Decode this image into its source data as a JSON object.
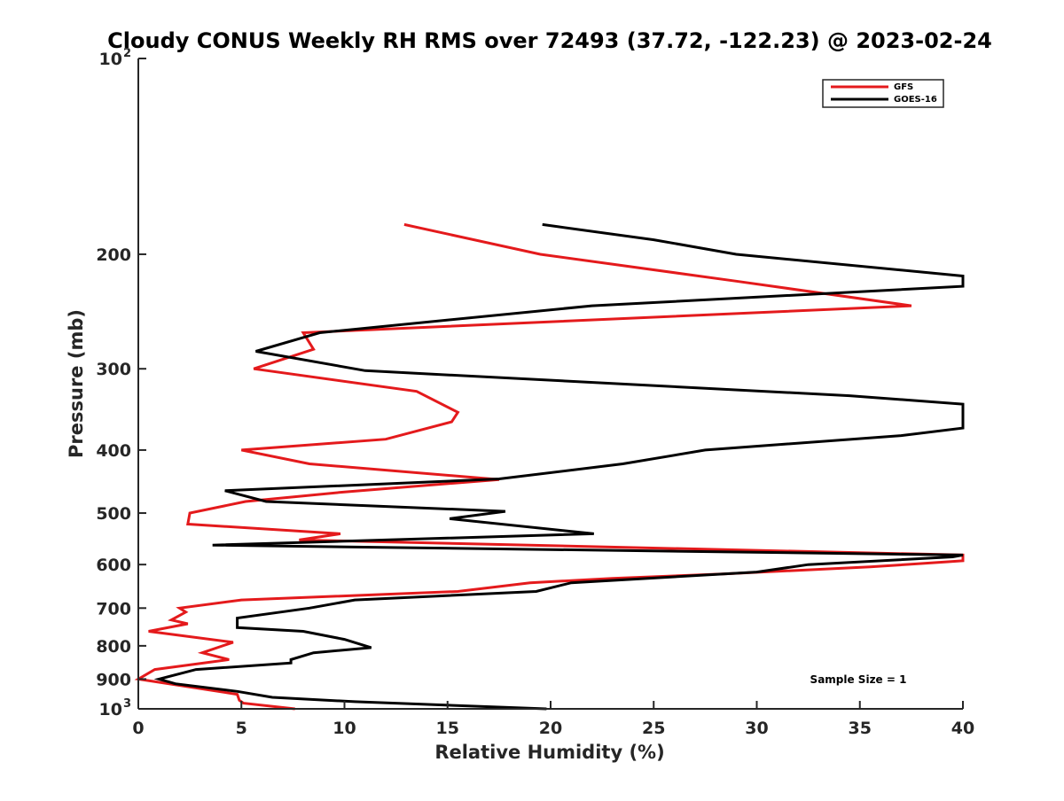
{
  "chart_data": {
    "type": "line",
    "title": "Cloudy CONUS Weekly RH RMS over 72493 (37.72, -122.23) @ 2023-02-24",
    "xlabel": "Relative Humidity (%)",
    "ylabel": "Pressure (mb)",
    "xlim": [
      0,
      40
    ],
    "ylim": [
      100,
      1000
    ],
    "y_scale": "log",
    "y_direction": "reversed",
    "x_ticks": [
      0,
      5,
      10,
      15,
      20,
      25,
      30,
      35,
      40
    ],
    "y_ticks": [
      {
        "value": 100,
        "label": "10",
        "sup": "2"
      },
      {
        "value": 200,
        "label": "200",
        "sup": ""
      },
      {
        "value": 300,
        "label": "300",
        "sup": ""
      },
      {
        "value": 400,
        "label": "400",
        "sup": ""
      },
      {
        "value": 500,
        "label": "500",
        "sup": ""
      },
      {
        "value": 600,
        "label": "600",
        "sup": ""
      },
      {
        "value": 700,
        "label": "700",
        "sup": ""
      },
      {
        "value": 800,
        "label": "800",
        "sup": ""
      },
      {
        "value": 900,
        "label": "900",
        "sup": ""
      },
      {
        "value": 1000,
        "label": "10",
        "sup": "3"
      }
    ],
    "grid": false,
    "legend_position": "top-right",
    "annotation": "Sample Size = 1",
    "series": [
      {
        "name": "GFS",
        "color": "#e41a1c",
        "points": [
          [
            12.9,
            180
          ],
          [
            19.5,
            200
          ],
          [
            29.0,
            220
          ],
          [
            37.5,
            240
          ],
          [
            8.0,
            264
          ],
          [
            8.5,
            280
          ],
          [
            5.6,
            300
          ],
          [
            13.5,
            325
          ],
          [
            15.5,
            350
          ],
          [
            15.2,
            362
          ],
          [
            12.0,
            385
          ],
          [
            5.0,
            400
          ],
          [
            8.3,
            420
          ],
          [
            17.5,
            444
          ],
          [
            10.0,
            464
          ],
          [
            5.2,
            480
          ],
          [
            2.5,
            500
          ],
          [
            2.4,
            520
          ],
          [
            9.8,
            538
          ],
          [
            7.8,
            550
          ],
          [
            40.0,
            580
          ],
          [
            40.0,
            592
          ],
          [
            35.5,
            605
          ],
          [
            28.5,
            620
          ],
          [
            23.0,
            630
          ],
          [
            19.0,
            640
          ],
          [
            15.5,
            660
          ],
          [
            5.0,
            680
          ],
          [
            2.0,
            700
          ],
          [
            2.3,
            710
          ],
          [
            1.6,
            730
          ],
          [
            2.4,
            740
          ],
          [
            0.5,
            760
          ],
          [
            4.6,
            790
          ],
          [
            3.1,
            820
          ],
          [
            4.4,
            840
          ],
          [
            0.8,
            870
          ],
          [
            0.0,
            900
          ],
          [
            4.8,
            950
          ],
          [
            4.9,
            970
          ],
          [
            5.1,
            980
          ],
          [
            7.6,
            1000
          ]
        ]
      },
      {
        "name": "GOES-16",
        "color": "#000000",
        "points": [
          [
            19.6,
            180
          ],
          [
            25.0,
            190
          ],
          [
            29.0,
            200
          ],
          [
            40.0,
            216
          ],
          [
            40.0,
            224
          ],
          [
            22.0,
            240
          ],
          [
            8.8,
            264
          ],
          [
            5.7,
            282
          ],
          [
            11.0,
            302
          ],
          [
            34.5,
            330
          ],
          [
            40.0,
            340
          ],
          [
            40.0,
            370
          ],
          [
            37.0,
            380
          ],
          [
            27.5,
            400
          ],
          [
            23.5,
            420
          ],
          [
            17.5,
            443
          ],
          [
            4.2,
            462
          ],
          [
            6.2,
            480
          ],
          [
            17.8,
            497
          ],
          [
            15.1,
            510
          ],
          [
            22.1,
            538
          ],
          [
            3.6,
            560
          ],
          [
            40.0,
            580
          ],
          [
            39.5,
            584
          ],
          [
            32.5,
            600
          ],
          [
            30.0,
            616
          ],
          [
            21.0,
            640
          ],
          [
            19.3,
            660
          ],
          [
            10.5,
            680
          ],
          [
            8.3,
            700
          ],
          [
            4.8,
            725
          ],
          [
            4.8,
            750
          ],
          [
            8.0,
            760
          ],
          [
            10.0,
            782
          ],
          [
            11.3,
            805
          ],
          [
            8.5,
            820
          ],
          [
            7.4,
            840
          ],
          [
            7.4,
            850
          ],
          [
            2.8,
            870
          ],
          [
            1.0,
            900
          ],
          [
            1.8,
            915
          ],
          [
            4.8,
            940
          ],
          [
            6.5,
            960
          ],
          [
            10.5,
            975
          ],
          [
            19.8,
            1000
          ]
        ]
      }
    ]
  }
}
